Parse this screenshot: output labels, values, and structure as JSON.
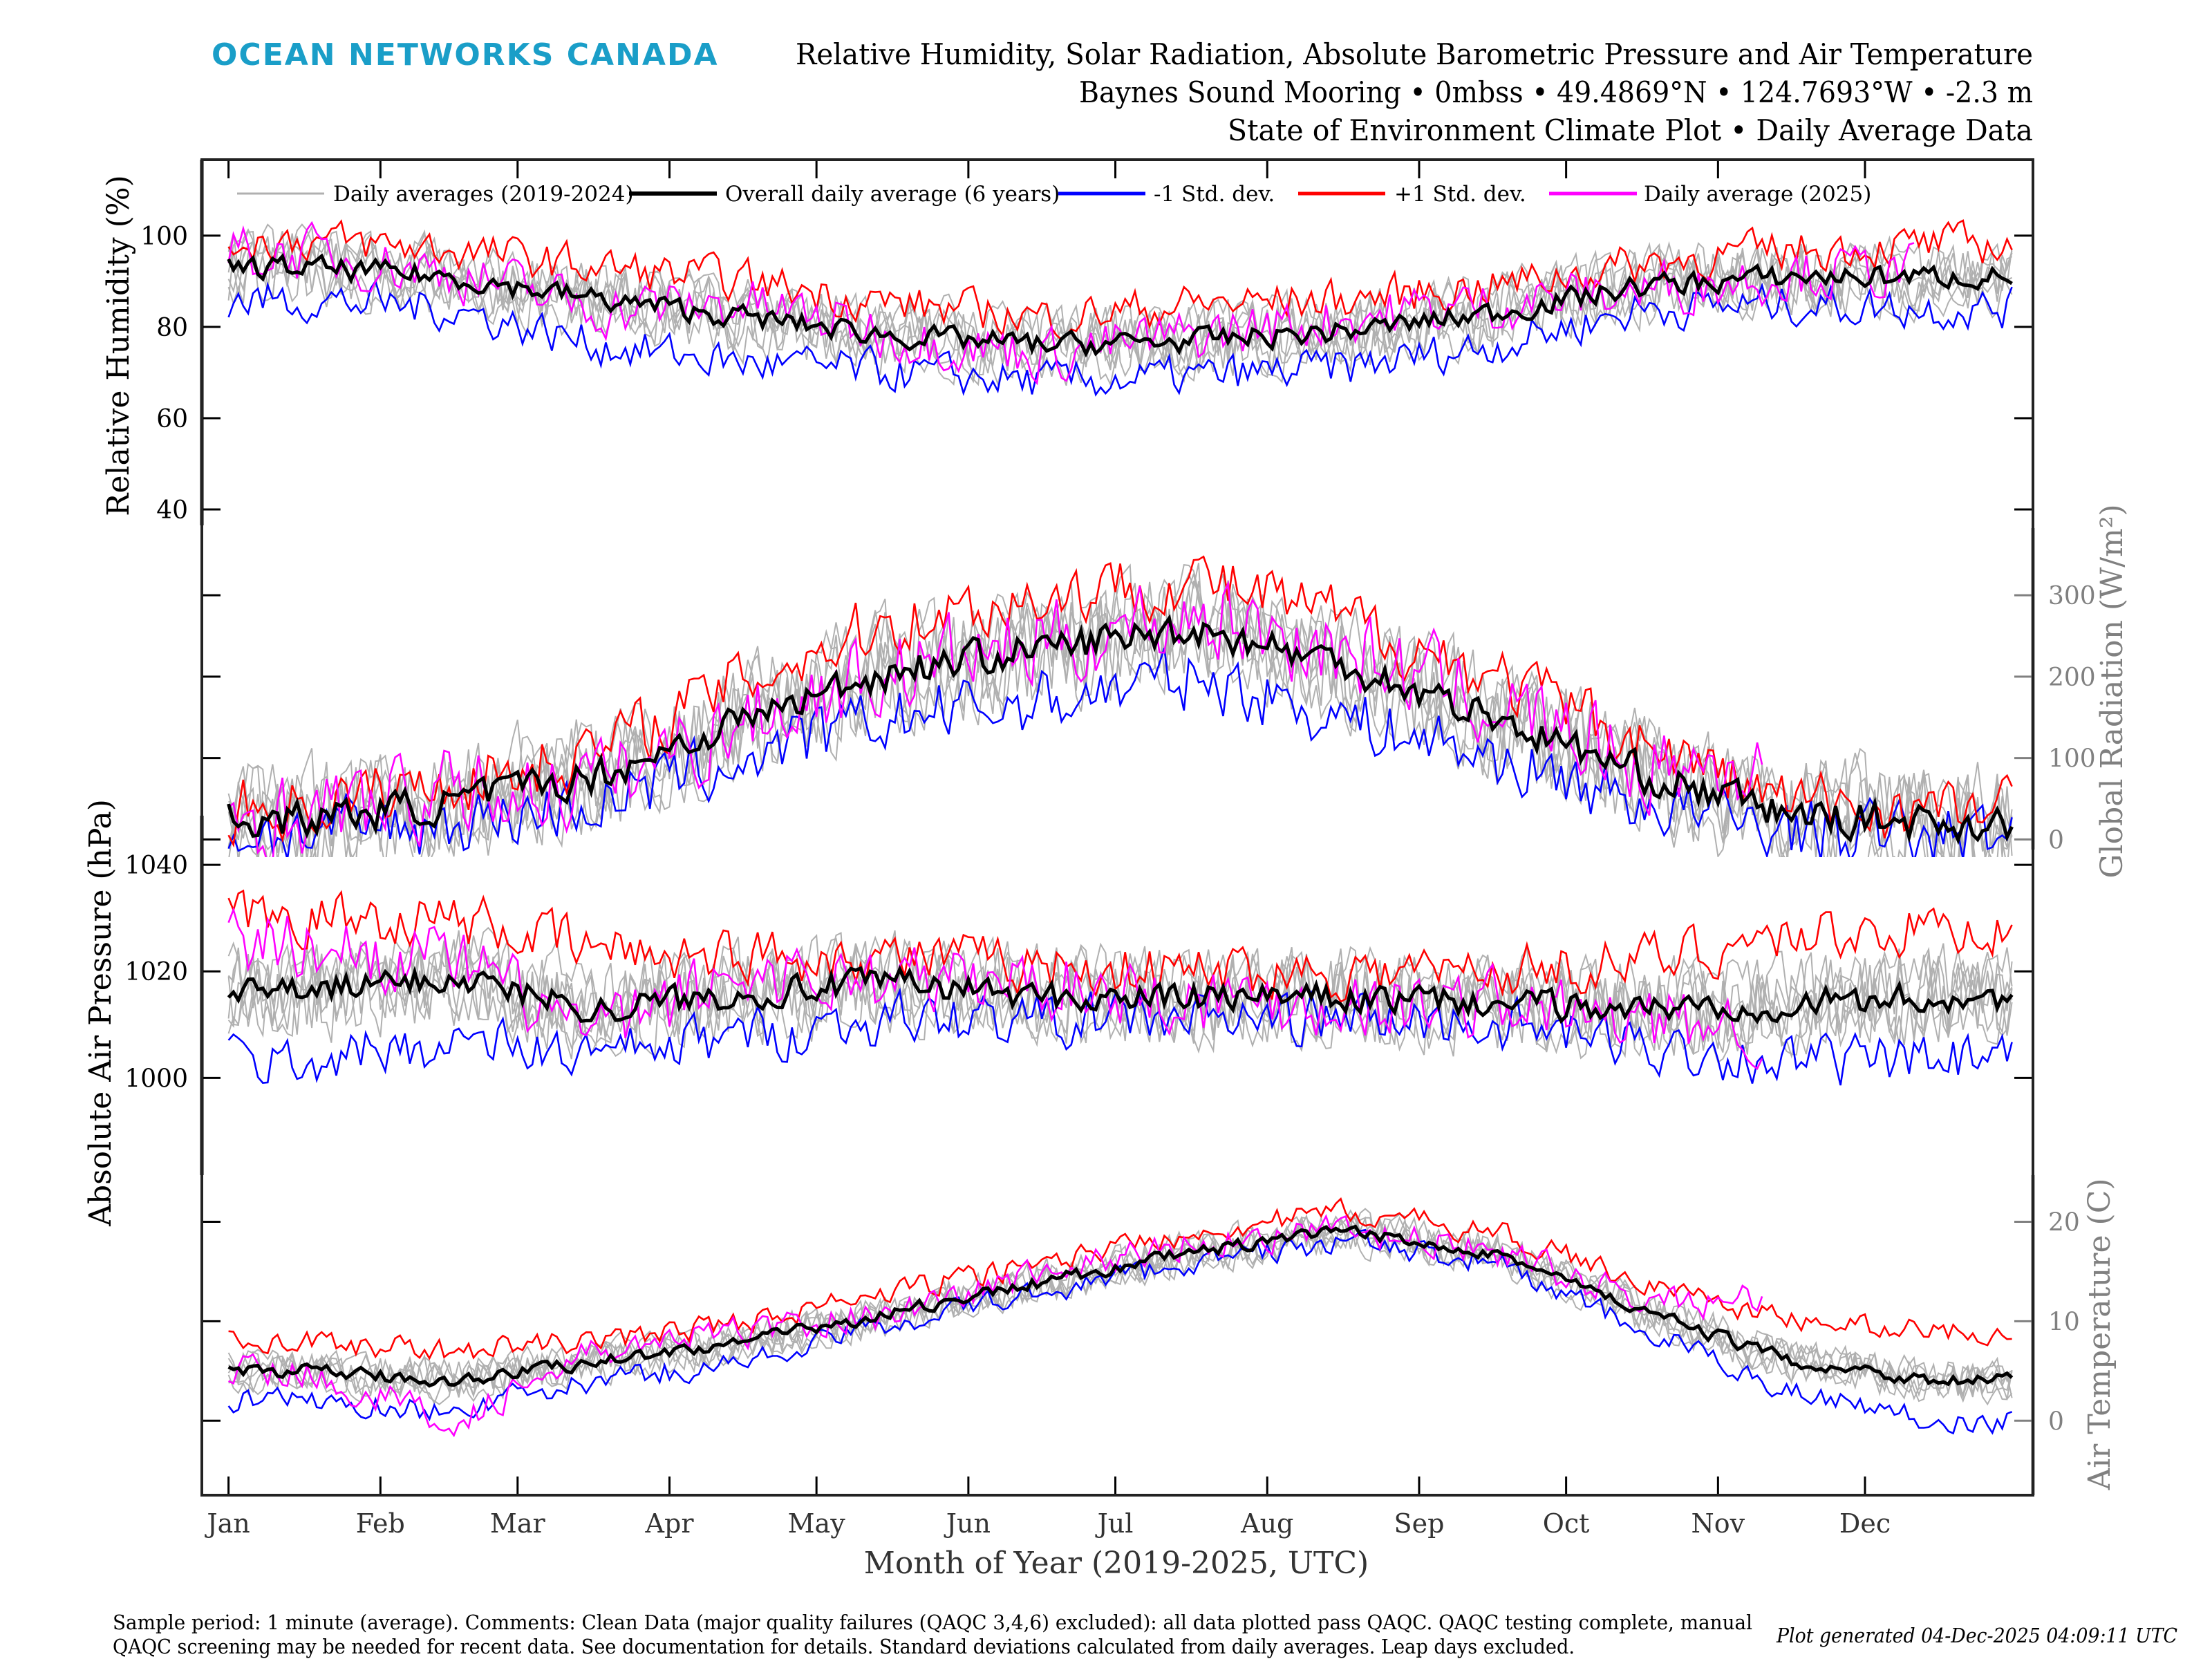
{
  "header": {
    "logo_text": "OCEAN NETWORKS CANADA",
    "title_line1": "Relative Humidity, Solar Radiation, Absolute Barometric Pressure and Air Temperature",
    "title_line2": "Baynes Sound Mooring • 0mbss • 49.4869°N • 124.7693°W • -2.3 m",
    "title_line3": "State of Environment Climate Plot • Daily Average Data"
  },
  "footer": {
    "note_line1": "Sample period: 1 minute (average). Comments: Clean Data (major quality failures (QAQC 3,4,6) excluded): all data plotted pass QAQC. QAQC testing complete, manual",
    "note_line2": "QAQC screening may be needed for recent data. See documentation for details. Standard deviations calculated from daily averages. Leap days excluded.",
    "generated": "Plot generated 04-Dec-2025 04:09:11 UTC"
  },
  "colors": {
    "logo": "#1a9ec8",
    "daily_years": "#b0b0b0",
    "overall": "#000000",
    "minus_std": "#0000ff",
    "plus_std": "#ff0000",
    "year_2025": "#ff00ff",
    "right_axis": "#808080"
  },
  "chart_data": {
    "type": "line",
    "xlabel": "Month of Year (2019-2025, UTC)",
    "categories": [
      "Jan",
      "Feb",
      "Mar",
      "Apr",
      "May",
      "Jun",
      "Jul",
      "Aug",
      "Sep",
      "Oct",
      "Nov",
      "Dec"
    ],
    "legend": {
      "placement": "top",
      "entries": [
        "Daily averages (2019-2024)",
        "Overall daily average (6 years)",
        "-1 Std. dev.",
        "+1 Std. dev.",
        "Daily average (2025)"
      ]
    },
    "panels": [
      {
        "key": "rh",
        "ylabel": "Relative Humidity (%)",
        "axis_side": "left",
        "ticks": [
          40,
          60,
          80,
          100
        ],
        "ylim": [
          40,
          117
        ],
        "series": [
          {
            "name": "Overall daily average (6 years)",
            "values": [
              93,
              91,
              86,
              82,
              78,
              76,
              77,
              79,
              83,
              89,
              91,
              91
            ]
          },
          {
            "name": "+1 Std. dev.",
            "values": [
              99,
              97,
              93,
              90,
              85,
              82,
              85,
              86,
              89,
              94,
              97,
              98
            ]
          },
          {
            "name": "-1 Std. dev.",
            "values": [
              86,
              84,
              76,
              72,
              70,
              68,
              69,
              71,
              76,
              84,
              85,
              84
            ]
          },
          {
            "name": "Daily average (2025)",
            "values": [
              96,
              92,
              84,
              85,
              78,
              74,
              78,
              82,
              85,
              88,
              92,
              null
            ]
          }
        ]
      },
      {
        "key": "rad",
        "ylabel": "Global Radiation (W/m²)",
        "axis_side": "right",
        "ticks": [
          0,
          100,
          200,
          300
        ],
        "ylim": [
          -25,
          380
        ],
        "series": [
          {
            "name": "Overall daily average (6 years)",
            "values": [
              25,
              45,
              80,
              150,
              210,
              235,
              260,
              215,
              150,
              80,
              30,
              20
            ]
          },
          {
            "name": "+1 Std. dev.",
            "values": [
              40,
              70,
              110,
              200,
              270,
              300,
              320,
              270,
              200,
              120,
              45,
              35
            ]
          },
          {
            "name": "-1 Std. dev.",
            "values": [
              8,
              20,
              45,
              100,
              150,
              170,
              200,
              150,
              100,
              45,
              12,
              5
            ]
          },
          {
            "name": "Daily average (2025)",
            "values": [
              30,
              55,
              70,
              150,
              210,
              240,
              280,
              230,
              170,
              90,
              null,
              null
            ]
          }
        ]
      },
      {
        "key": "pres",
        "ylabel": "Absolute Air Pressure (hPa)",
        "axis_side": "left",
        "ticks": [
          1000,
          1020,
          1040
        ],
        "ylim": [
          982,
          1045
        ],
        "series": [
          {
            "name": "Overall daily average (6 years)",
            "values": [
              1016,
              1019,
              1013,
              1016,
              1018,
              1015,
              1015,
              1015,
              1014,
              1013,
              1014,
              1015
            ]
          },
          {
            "name": "+1 Std. dev.",
            "values": [
              1030,
              1030,
              1024,
              1023,
              1023,
              1021,
              1020,
              1020,
              1020,
              1022,
              1027,
              1028
            ]
          },
          {
            "name": "-1 Std. dev.",
            "values": [
              1003,
              1007,
              1004,
              1008,
              1011,
              1011,
              1011,
              1011,
              1010,
              1006,
              1003,
              1003
            ]
          },
          {
            "name": "Daily average (2025)",
            "values": [
              1025,
              1022,
              1008,
              1020,
              1018,
              1018,
              1015,
              1014,
              1014,
              1010,
              null,
              null
            ]
          }
        ]
      },
      {
        "key": "temp",
        "ylabel": "Air Temperature (C)",
        "axis_side": "right",
        "ticks": [
          0,
          10,
          20
        ],
        "ylim": [
          -7.5,
          25
        ],
        "series": [
          {
            "name": "Overall daily average (6 years)",
            "values": [
              5,
              4,
              6,
              8,
              11,
              14,
              17,
              19,
              17,
              11,
              6,
              4
            ]
          },
          {
            "name": "+1 Std. dev.",
            "values": [
              8,
              7,
              8,
              10,
              13,
              16,
              19,
              21,
              19,
              14,
              10,
              9
            ]
          },
          {
            "name": "-1 Std. dev.",
            "values": [
              2,
              1,
              4,
              6,
              10,
              13,
              16,
              18,
              16,
              9,
              3,
              0
            ]
          },
          {
            "name": "Daily average (2025)",
            "values": [
              5,
              0,
              7,
              9,
              11,
              15,
              18,
              19,
              17,
              12,
              null,
              null
            ]
          }
        ]
      }
    ]
  }
}
